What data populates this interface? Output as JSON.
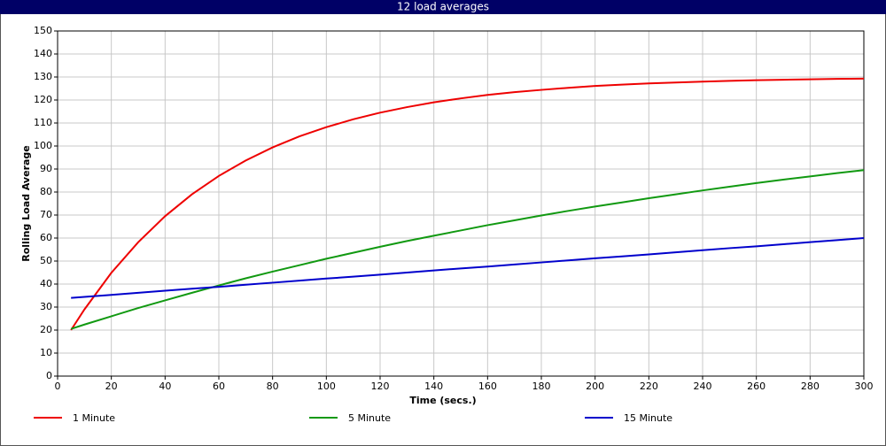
{
  "chart_data": {
    "type": "line",
    "title": "12 load averages",
    "x_label": "Time (secs.)",
    "y_label": "Rolling Load Average",
    "x": [
      5,
      10,
      20,
      30,
      40,
      50,
      60,
      70,
      80,
      90,
      100,
      110,
      120,
      130,
      140,
      150,
      160,
      170,
      180,
      190,
      200,
      210,
      220,
      230,
      240,
      250,
      260,
      270,
      280,
      290,
      300
    ],
    "series": [
      {
        "name": "1 Minute",
        "color": "#ee0000",
        "values": [
          20,
          29.0,
          44.9,
          58.2,
          69.5,
          79.0,
          87.0,
          93.7,
          99.4,
          104.2,
          108.2,
          111.6,
          114.5,
          116.9,
          119.0,
          120.7,
          122.2,
          123.4,
          124.4,
          125.3,
          126.1,
          126.7,
          127.2,
          127.6,
          128.0,
          128.3,
          128.6,
          128.8,
          129.0,
          129.2,
          129.3
        ]
      },
      {
        "name": "5 Minute",
        "color": "#119911",
        "values": [
          20.5,
          22.4,
          26.0,
          29.6,
          32.9,
          36.2,
          39.4,
          42.5,
          45.4,
          48.2,
          51.0,
          53.6,
          56.2,
          58.7,
          61.0,
          63.3,
          65.6,
          67.7,
          69.8,
          71.8,
          73.7,
          75.5,
          77.3,
          79.0,
          80.7,
          82.3,
          83.9,
          85.4,
          86.8,
          88.2,
          89.5
        ]
      },
      {
        "name": "15 Minute",
        "color": "#0000cc",
        "values": [
          34.0,
          34.4,
          35.3,
          36.2,
          37.1,
          38.0,
          38.8,
          39.7,
          40.6,
          41.5,
          42.4,
          43.2,
          44.1,
          45.0,
          45.9,
          46.8,
          47.6,
          48.5,
          49.4,
          50.3,
          51.2,
          52.0,
          52.9,
          53.8,
          54.7,
          55.6,
          56.4,
          57.3,
          58.2,
          59.1,
          60.0
        ]
      }
    ],
    "xlim": [
      0,
      300
    ],
    "xticks": [
      0,
      20,
      40,
      60,
      80,
      100,
      120,
      140,
      160,
      180,
      200,
      220,
      240,
      260,
      280,
      300
    ],
    "ylim": [
      0,
      150
    ],
    "yticks": [
      0,
      10,
      20,
      30,
      40,
      50,
      60,
      70,
      80,
      90,
      100,
      110,
      120,
      130,
      140,
      150
    ],
    "grid": true
  }
}
